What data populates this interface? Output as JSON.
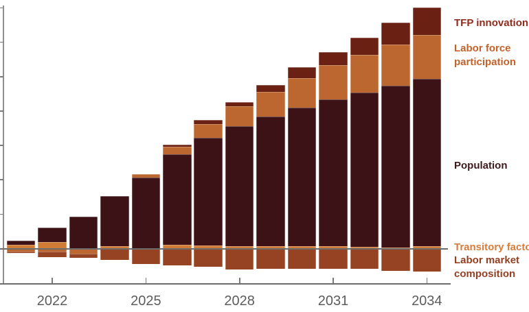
{
  "chart_data": {
    "type": "bar",
    "stacked": true,
    "title": "",
    "xlabel": "",
    "ylabel": "",
    "x": [
      2021,
      2022,
      2023,
      2024,
      2025,
      2026,
      2027,
      2028,
      2029,
      2030,
      2031,
      2032,
      2033,
      2034
    ],
    "x_tick_years": [
      2022,
      2025,
      2028,
      2031,
      2034
    ],
    "x_tick_labels": [
      "2022",
      "2025",
      "2028",
      "2031",
      "2034"
    ],
    "y_ticks_unlabeled": [
      0.5,
      1.0,
      1.5,
      2.0,
      2.5,
      3.0,
      3.5
    ],
    "ylim": [
      -0.5,
      3.6
    ],
    "grid": false,
    "legend_position": "right",
    "series": [
      {
        "id": "trans",
        "name": "Transitory factors",
        "color": "#d07b36",
        "values": [
          0.055,
          0.09,
          0.0,
          0.03,
          0.0,
          0.055,
          0.045,
          0.03,
          0.03,
          0.03,
          0.03,
          0.02,
          0.015,
          0.035
        ]
      },
      {
        "id": "pop",
        "name": "Population",
        "color": "#3c1217",
        "values": [
          0.06,
          0.215,
          0.46,
          0.735,
          1.03,
          1.315,
          1.565,
          1.75,
          1.885,
          2.015,
          2.14,
          2.25,
          2.355,
          2.435
        ]
      },
      {
        "id": "lfp",
        "name": "Labor force participation",
        "color": "#bc672f",
        "values": [
          -0.04,
          -0.045,
          -0.07,
          0.0,
          0.05,
          0.115,
          0.2,
          0.285,
          0.365,
          0.435,
          0.5,
          0.55,
          0.6,
          0.635
        ]
      },
      {
        "id": "tfp",
        "name": "TFP innovation",
        "color": "#6a2113",
        "values": [
          0.0,
          0.0,
          0.0,
          0.0,
          0.0,
          0.03,
          0.06,
          0.065,
          0.1,
          0.155,
          0.185,
          0.25,
          0.32,
          0.395
        ]
      },
      {
        "id": "lmc",
        "name": "Labor market composition",
        "color": "#964323",
        "values": [
          -0.025,
          -0.075,
          -0.06,
          -0.165,
          -0.22,
          -0.245,
          -0.265,
          -0.3,
          -0.29,
          -0.29,
          -0.29,
          -0.29,
          -0.32,
          -0.33
        ]
      }
    ],
    "positive_stack_order": [
      "trans",
      "pop",
      "lfp",
      "tfp"
    ],
    "negative_stack_order": [
      "lfp",
      "lmc"
    ]
  },
  "legend": {
    "entries": [
      {
        "id": "tfp",
        "label": "TFP innovation",
        "lines": [
          "TFP innovation"
        ],
        "color": "#922b1e"
      },
      {
        "id": "lfp",
        "label": "Labor force participation",
        "lines": [
          "Labor force",
          "participation"
        ],
        "color": "#c2622b"
      },
      {
        "id": "pop",
        "label": "Population",
        "lines": [
          "Population"
        ],
        "color": "#3f191d"
      },
      {
        "id": "trans",
        "label": "Transitory factors",
        "lines": [
          "Transitory factors"
        ],
        "color": "#d67d3c"
      },
      {
        "id": "lmc",
        "label": "Labor market composition",
        "lines": [
          "Labor market",
          "composition"
        ],
        "color": "#964023"
      }
    ]
  }
}
